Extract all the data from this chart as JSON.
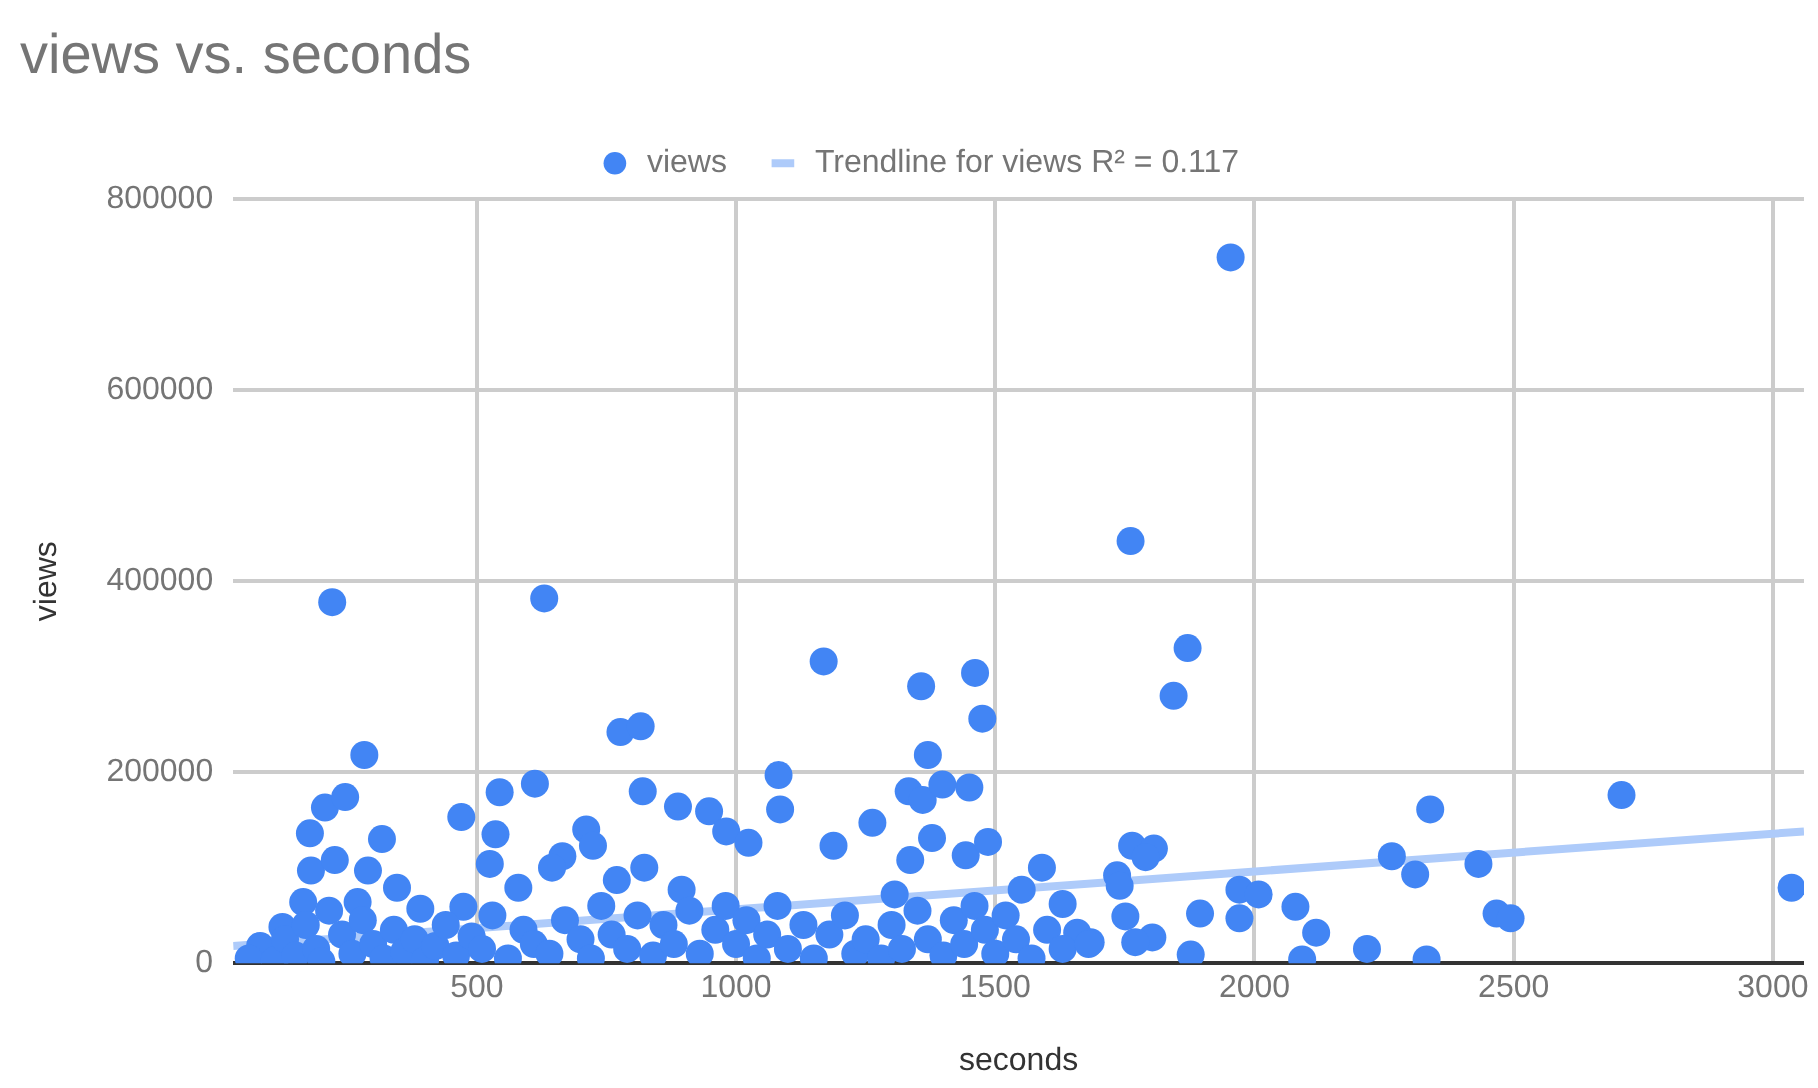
{
  "chart_data": {
    "type": "scatter",
    "title": "views vs. seconds",
    "xlabel": "seconds",
    "ylabel": "views",
    "xlim": [
      30,
      3060
    ],
    "xticks": [
      500,
      1000,
      1500,
      2000,
      2500,
      3000
    ],
    "ylim": [
      0,
      800000
    ],
    "yticks": [
      0,
      200000,
      400000,
      600000,
      800000
    ],
    "grid": true,
    "legend": "top",
    "series": [
      {
        "name": "views",
        "color": "#4285f4",
        "marker": "circle",
        "x": [
          221,
          630,
          283,
          207,
          246,
          178,
          317,
          290,
          180,
          226,
          470,
          544,
          536,
          525,
          612,
          665,
          645,
          711,
          724,
          777,
          816,
          820,
          770,
          823,
          888,
          948,
          981,
          1024,
          895,
          346,
          391,
          474,
          580,
          125,
          82,
          165,
          270,
          1954,
          1761,
          1871,
          1844,
          1169,
          1357,
          1461,
          1475,
          1370,
          1082,
          1085,
          1333,
          1360,
          1398,
          1450,
          1263,
          1188,
          1378,
          1336,
          1443,
          1486,
          1306,
          1590,
          1764,
          1806,
          1790,
          1735,
          1740,
          1630,
          1551,
          1751,
          1803,
          1770,
          1895,
          1877,
          1971,
          2008,
          1971,
          2079,
          1658,
          1684,
          2119,
          2092,
          2217,
          2339,
          2265,
          2310,
          2332,
          2432,
          2467,
          2494,
          2708,
          3036,
          60,
          110,
          130,
          150,
          170,
          190,
          200,
          215,
          240,
          260,
          280,
          300,
          320,
          340,
          360,
          380,
          400,
          420,
          440,
          460,
          490,
          510,
          530,
          560,
          590,
          610,
          640,
          670,
          700,
          720,
          740,
          760,
          790,
          810,
          840,
          860,
          880,
          910,
          930,
          960,
          980,
          1000,
          1020,
          1040,
          1060,
          1080,
          1100,
          1130,
          1150,
          1180,
          1210,
          1230,
          1250,
          1280,
          1300,
          1320,
          1350,
          1370,
          1400,
          1420,
          1440,
          1460,
          1480,
          1500,
          1520,
          1540,
          1570,
          1600,
          1630,
          1680
        ],
        "values": [
          378000,
          382000,
          218000,
          163000,
          174000,
          136000,
          130000,
          97000,
          97000,
          108000,
          153000,
          179000,
          135000,
          104000,
          188000,
          112000,
          100000,
          140000,
          123000,
          242000,
          248000,
          180000,
          87000,
          100000,
          164000,
          159000,
          138000,
          126000,
          77000,
          79000,
          57000,
          59000,
          79000,
          38000,
          18000,
          64000,
          64000,
          739000,
          442000,
          330000,
          280000,
          316000,
          290000,
          304000,
          256000,
          218000,
          197000,
          161000,
          180000,
          171000,
          187000,
          184000,
          147000,
          123000,
          131000,
          108000,
          113000,
          127000,
          72000,
          100000,
          123000,
          120000,
          111000,
          92000,
          81000,
          62000,
          77000,
          49000,
          27000,
          22000,
          52000,
          9000,
          77000,
          72000,
          47000,
          59000,
          32000,
          22000,
          32000,
          4000,
          15000,
          161000,
          112000,
          93000,
          4000,
          104000,
          52000,
          47000,
          176000,
          79000,
          5000,
          3000,
          25000,
          8000,
          40000,
          15000,
          2000,
          55000,
          30000,
          10000,
          45000,
          20000,
          5000,
          35000,
          12000,
          25000,
          3000,
          18000,
          40000,
          8000,
          28000,
          15000,
          50000,
          5000,
          35000,
          20000,
          10000,
          45000,
          25000,
          5000,
          60000,
          30000,
          15000,
          50000,
          8000,
          40000,
          20000,
          55000,
          10000,
          35000,
          60000,
          20000,
          45000,
          5000,
          30000,
          60000,
          15000,
          40000,
          5000,
          30000,
          50000,
          10000,
          25000,
          5000,
          40000,
          15000,
          55000,
          25000,
          8000,
          45000,
          20000,
          60000,
          35000,
          10000,
          50000,
          25000,
          5000,
          35000,
          15000,
          20000
        ]
      },
      {
        "name": "Trendline for views R² = 0.117",
        "type": "line",
        "color": "#aecbfa",
        "marker": "none",
        "x": [
          30,
          3060
        ],
        "values": [
          18000,
          138000
        ]
      }
    ]
  }
}
